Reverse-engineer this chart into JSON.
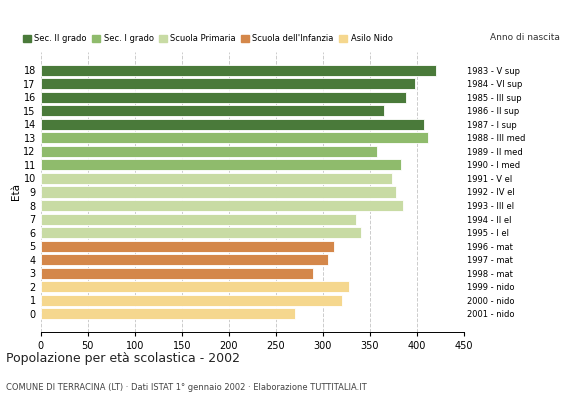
{
  "ages": [
    0,
    1,
    2,
    3,
    4,
    5,
    6,
    7,
    8,
    9,
    10,
    11,
    12,
    13,
    14,
    15,
    16,
    17,
    18
  ],
  "values": [
    270,
    320,
    328,
    290,
    305,
    312,
    340,
    335,
    385,
    378,
    373,
    383,
    358,
    412,
    408,
    365,
    388,
    398,
    420
  ],
  "right_labels": [
    "2001 - nido",
    "2000 - nido",
    "1999 - nido",
    "1998 - mat",
    "1997 - mat",
    "1996 - mat",
    "1995 - I el",
    "1994 - II el",
    "1993 - III el",
    "1992 - IV el",
    "1991 - V el",
    "1990 - I med",
    "1989 - II med",
    "1988 - III med",
    "1987 - I sup",
    "1986 - II sup",
    "1985 - III sup",
    "1984 - VI sup",
    "1983 - V sup"
  ],
  "bar_colors": [
    "#f5d78e",
    "#f5d78e",
    "#f5d78e",
    "#d4874a",
    "#d4874a",
    "#d4874a",
    "#c8dba4",
    "#c8dba4",
    "#c8dba4",
    "#c8dba4",
    "#c8dba4",
    "#8fbb6c",
    "#8fbb6c",
    "#8fbb6c",
    "#4a7a3a",
    "#4a7a3a",
    "#4a7a3a",
    "#4a7a3a",
    "#4a7a3a"
  ],
  "legend_labels": [
    "Sec. II grado",
    "Sec. I grado",
    "Scuola Primaria",
    "Scuola dell'Infanzia",
    "Asilo Nido"
  ],
  "legend_colors": [
    "#4a7a3a",
    "#8fbb6c",
    "#c8dba4",
    "#d4874a",
    "#f5d78e"
  ],
  "title": "Popolazione per età scolastica - 2002",
  "subtitle": "COMUNE DI TERRACINA (LT) · Dati ISTAT 1° gennaio 2002 · Elaborazione TUTTITALIA.IT",
  "ylabel": "Età",
  "xlim": [
    0,
    450
  ],
  "xticks": [
    0,
    50,
    100,
    150,
    200,
    250,
    300,
    350,
    400,
    450
  ],
  "background_color": "#ffffff",
  "grid_color": "#cccccc",
  "anno_label": "Anno di nascita"
}
